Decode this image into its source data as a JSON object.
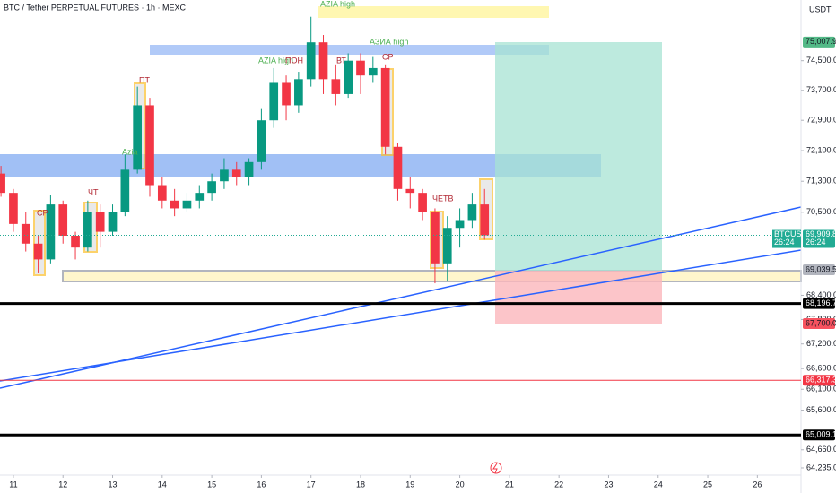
{
  "chart_data": {
    "type": "candlestick",
    "title": "BTC / Tether PERPETUAL FUTURES · 1h · MEXC",
    "currency": "USDT",
    "log": true,
    "grid": false,
    "up_color": "#089981",
    "down_color": "#f23645",
    "xlim": [
      10.73,
      26.88
    ],
    "xticks": [
      11,
      12,
      13,
      14,
      15,
      16,
      17,
      18,
      19,
      20,
      21,
      22,
      23,
      24,
      25,
      26
    ],
    "ylim": [
      64067,
      76164
    ],
    "yticks": [
      {
        "value": 74500,
        "label": "74,500.0"
      },
      {
        "value": 73700,
        "label": "73,700.0"
      },
      {
        "value": 72900,
        "label": "72,900.0"
      },
      {
        "value": 72100,
        "label": "72,100.0"
      },
      {
        "value": 71300,
        "label": "71,300.0"
      },
      {
        "value": 70500,
        "label": "70,500.0"
      },
      {
        "value": 68400,
        "label": "68,400.0"
      },
      {
        "value": 67800,
        "label": "67,800.0"
      },
      {
        "value": 67200,
        "label": "67,200.0"
      },
      {
        "value": 66600,
        "label": "66,600.0"
      },
      {
        "value": 66100,
        "label": "66,100.0"
      },
      {
        "value": 65600,
        "label": "65,600.0"
      },
      {
        "value": 64660,
        "label": "64,660.0"
      },
      {
        "value": 64235,
        "label": "64,235.0"
      }
    ],
    "price_tags": [
      {
        "value": 75007.9,
        "label": "75,007.9",
        "color": "#53b987",
        "text_color": "#131722",
        "line": false
      },
      {
        "value": 69039.5,
        "label": "69,039.5",
        "color": "#b2b5be",
        "text_color": "#131722",
        "line": false
      },
      {
        "value": 68196.7,
        "label": "68,196.7",
        "color": "#000000",
        "text_color": "#ffffff",
        "line": true
      },
      {
        "value": 67700.0,
        "label": "67,700.0",
        "color": "#f7525f",
        "text_color": "#131722",
        "line": false
      },
      {
        "value": 66317.3,
        "label": "66,317.3",
        "color": "#f23645",
        "text_color": "#ffffff",
        "line": true
      },
      {
        "value": 65009.1,
        "label": "65,009.1",
        "color": "#000000",
        "text_color": "#ffffff",
        "line": true
      }
    ],
    "last_price": {
      "value": 69909.8,
      "label": "69,909.8",
      "symbol": "BTCUSDT.P",
      "countdown": "26:24",
      "color": "#22ab94"
    },
    "annotations": [
      {
        "text": "AZIA high",
        "color": "#4caf50"
      },
      {
        "text": "АЗИА high",
        "color": "#4caf50"
      },
      {
        "text": "AZIA high",
        "color": "#4caf50"
      },
      {
        "text": "Azia",
        "color": "#4caf50"
      },
      {
        "text": "СР",
        "color": "#b22833"
      },
      {
        "text": "ЧТ",
        "color": "#b22833"
      },
      {
        "text": "ПТ",
        "color": "#b22833"
      },
      {
        "text": "ПОН",
        "color": "#b22833"
      },
      {
        "text": "ВТ",
        "color": "#b22833"
      },
      {
        "text": "СР",
        "color": "#b22833"
      },
      {
        "text": "ЧЕТВ",
        "color": "#b22833"
      }
    ],
    "x": [
      10.75,
      11,
      11.25,
      11.5,
      11.75,
      12,
      12.25,
      12.5,
      12.75,
      13,
      13.25,
      13.5,
      13.75,
      14,
      14.25,
      14.5,
      14.75,
      15,
      15.25,
      15.5,
      15.75,
      16,
      16.25,
      16.5,
      16.75,
      17,
      17.25,
      17.5,
      17.75,
      18,
      18.25,
      18.5,
      18.75,
      19,
      19.25,
      19.5,
      19.75,
      20,
      20.25,
      20.5
    ],
    "open": [
      71500,
      71000,
      70200,
      69700,
      69300,
      70700,
      69900,
      69600,
      70500,
      70000,
      70500,
      71600,
      73300,
      71200,
      70800,
      70600,
      70800,
      71000,
      71300,
      71600,
      71400,
      71800,
      72900,
      73900,
      73300,
      74000,
      75000,
      74000,
      73600,
      74500,
      74100,
      74300,
      72200,
      71100,
      71000,
      70500,
      69200,
      70100,
      70300,
      70700
    ],
    "high": [
      71700,
      71100,
      70500,
      69900,
      70950,
      70800,
      70000,
      70800,
      70700,
      70700,
      72000,
      73800,
      73500,
      71400,
      71100,
      71000,
      71200,
      71500,
      71900,
      71800,
      71900,
      73200,
      74300,
      74100,
      74200,
      75700,
      75200,
      74400,
      74700,
      74700,
      74600,
      74400,
      72300,
      71400,
      71100,
      70600,
      70400,
      70600,
      71000,
      71100
    ],
    "low": [
      70900,
      70000,
      69500,
      68950,
      69200,
      69700,
      69300,
      69500,
      69600,
      69900,
      70400,
      71500,
      70900,
      70600,
      70400,
      70500,
      70600,
      70800,
      71100,
      71200,
      71200,
      71600,
      72700,
      72900,
      73100,
      73800,
      73600,
      73300,
      73500,
      73600,
      73900,
      72000,
      70800,
      70600,
      70300,
      68700,
      68750,
      69600,
      70100,
      69800
    ],
    "close": [
      71000,
      70200,
      69700,
      69300,
      70700,
      69900,
      69600,
      70500,
      70000,
      70500,
      71600,
      73300,
      71200,
      70800,
      70600,
      70800,
      71000,
      71300,
      71600,
      71400,
      71800,
      72900,
      73900,
      73300,
      74000,
      75000,
      74000,
      73600,
      74500,
      74100,
      74300,
      72200,
      71100,
      71000,
      70500,
      69200,
      70100,
      70300,
      70700,
      69909.8
    ]
  }
}
